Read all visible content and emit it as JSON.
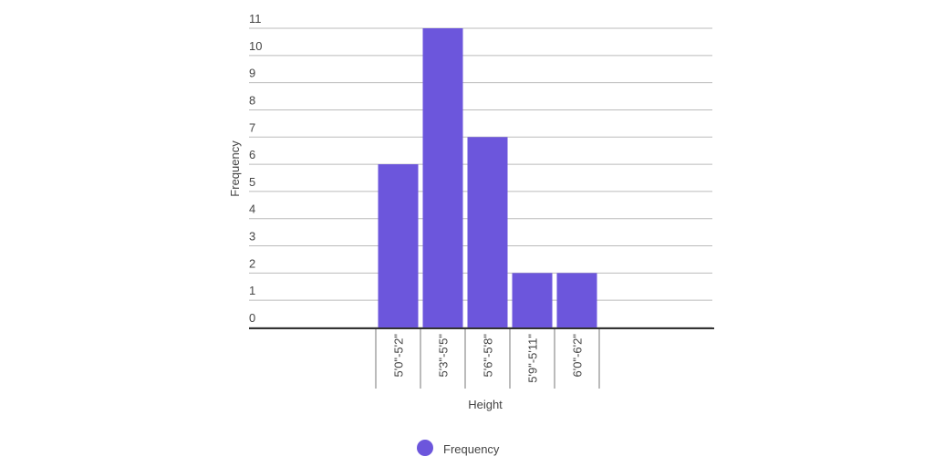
{
  "chart_data": {
    "type": "bar",
    "x_label": "Height",
    "y_label": "Frequency",
    "categories": [
      "5'0\"-5'2\"",
      "5'3\"-5'5\"",
      "5'6\"-5'8\"",
      "5'9\"-5'11\"",
      "6'0\"-6'2\""
    ],
    "series": [
      {
        "name": "Frequency",
        "color": "#6c56dc",
        "values": [
          6,
          11,
          7,
          2,
          2
        ]
      }
    ],
    "ylim": [
      0,
      11
    ],
    "yticks": [
      0,
      1,
      2,
      3,
      4,
      5,
      6,
      7,
      8,
      9,
      10,
      11
    ],
    "grid": true,
    "legend": "bottom"
  }
}
